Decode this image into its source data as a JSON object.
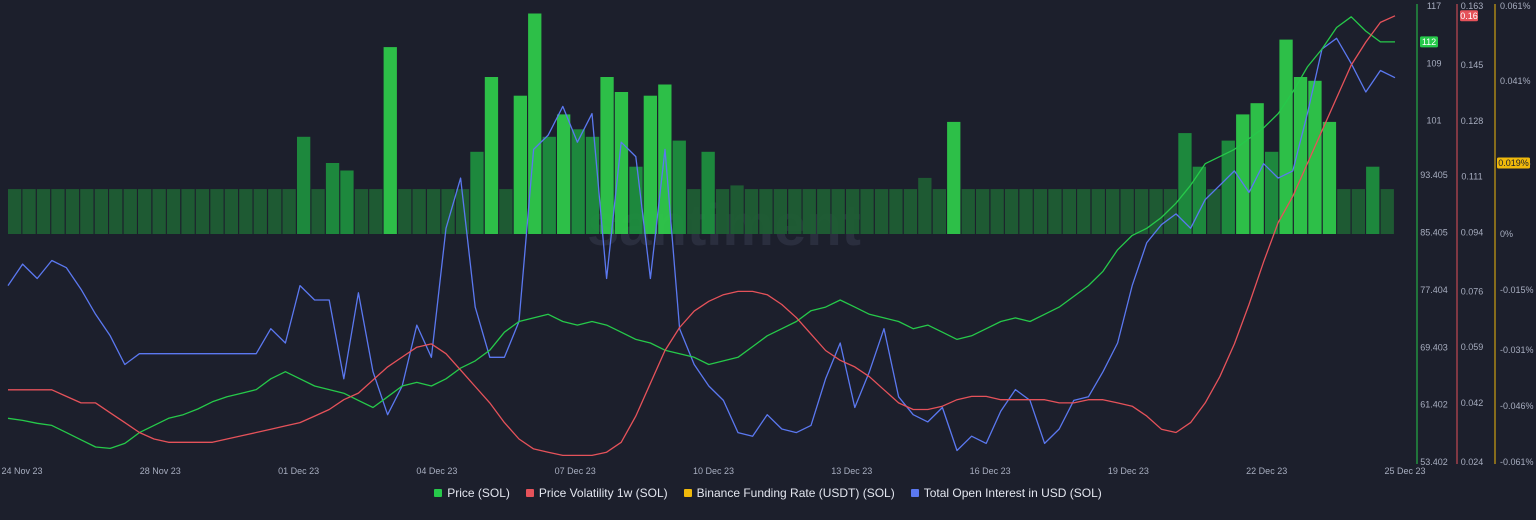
{
  "chart_data": {
    "type": "line",
    "x_ticks": [
      "24 Nov 23",
      "28 Nov 23",
      "01 Dec 23",
      "04 Dec 23",
      "07 Dec 23",
      "10 Dec 23",
      "13 Dec 23",
      "16 Dec 23",
      "19 Dec 23",
      "22 Dec 23",
      "25 Dec 23"
    ],
    "axes": {
      "price": {
        "ticks": [
          "117",
          "109",
          "101",
          "93.405",
          "85.405",
          "77.404",
          "69.403",
          "61.402",
          "53.402"
        ],
        "color": "#26c94a",
        "last_value": "112"
      },
      "volatility": {
        "ticks": [
          "0.163",
          "0.145",
          "0.128",
          "0.111",
          "0.094",
          "0.076",
          "0.059",
          "0.042",
          "0.024"
        ],
        "color": "#e5525a",
        "last_value": "0.16"
      },
      "funding": {
        "ticks": [
          "0.061%",
          "0.041%",
          "0.019%",
          "0%",
          "-0.015%",
          "-0.031%",
          "-0.046%",
          "-0.061%"
        ],
        "color": "#f0b90b",
        "last_value": "0.019%"
      }
    },
    "series": [
      {
        "name": "Price (SOL)",
        "color": "#26c94a",
        "values": [
          59.5,
          59.2,
          58.8,
          58.5,
          57.5,
          56.5,
          55.5,
          55.3,
          56.0,
          57.5,
          58.5,
          59.5,
          60.0,
          60.8,
          61.8,
          62.5,
          63.0,
          63.5,
          65.0,
          66.0,
          65.0,
          64.0,
          63.5,
          63.0,
          62.0,
          61.0,
          62.5,
          64.0,
          64.5,
          64.0,
          65.0,
          66.5,
          67.5,
          69.0,
          71.5,
          73.0,
          73.5,
          74.0,
          73.0,
          72.5,
          73.0,
          72.5,
          71.5,
          70.5,
          70.0,
          69.0,
          68.5,
          68.0,
          67.0,
          67.5,
          68.0,
          69.5,
          71.0,
          72.0,
          73.0,
          74.5,
          75.0,
          76.0,
          75.0,
          74.0,
          73.5,
          73.0,
          72.0,
          72.5,
          71.5,
          70.5,
          71.0,
          72.0,
          73.0,
          73.5,
          73.0,
          74.0,
          75.0,
          76.5,
          78.0,
          80.0,
          83.0,
          85.0,
          86.0,
          87.5,
          89.5,
          92.0,
          95.0,
          96.0,
          97.0,
          98.5,
          100.0,
          102.0,
          105.0,
          108.5,
          111.0,
          114.0,
          115.5,
          113.5,
          112.0,
          112.0
        ]
      },
      {
        "name": "Price Volatility 1w (SOL)",
        "color": "#e5525a",
        "values": [
          0.046,
          0.046,
          0.046,
          0.046,
          0.044,
          0.042,
          0.042,
          0.039,
          0.036,
          0.033,
          0.031,
          0.03,
          0.03,
          0.03,
          0.03,
          0.031,
          0.032,
          0.033,
          0.034,
          0.035,
          0.036,
          0.038,
          0.04,
          0.043,
          0.045,
          0.049,
          0.053,
          0.056,
          0.059,
          0.06,
          0.057,
          0.052,
          0.047,
          0.042,
          0.036,
          0.031,
          0.028,
          0.027,
          0.026,
          0.026,
          0.026,
          0.027,
          0.03,
          0.038,
          0.048,
          0.058,
          0.065,
          0.07,
          0.073,
          0.075,
          0.076,
          0.076,
          0.075,
          0.072,
          0.068,
          0.063,
          0.058,
          0.055,
          0.053,
          0.05,
          0.046,
          0.042,
          0.04,
          0.04,
          0.041,
          0.043,
          0.044,
          0.044,
          0.043,
          0.043,
          0.043,
          0.043,
          0.042,
          0.042,
          0.043,
          0.043,
          0.042,
          0.041,
          0.038,
          0.034,
          0.033,
          0.036,
          0.042,
          0.05,
          0.06,
          0.072,
          0.085,
          0.097,
          0.105,
          0.115,
          0.125,
          0.135,
          0.145,
          0.152,
          0.158,
          0.16
        ]
      },
      {
        "name": "Binance Funding Rate (USDT) (SOL)",
        "color": "#f0b90b",
        "values": [
          0.012,
          0.012,
          0.012,
          0.012,
          0.012,
          0.012,
          0.012,
          0.012,
          0.012,
          0.012,
          0.012,
          0.012,
          0.012,
          0.012,
          0.012,
          0.012,
          0.012,
          0.012,
          0.012,
          0.012,
          0.026,
          0.012,
          0.019,
          0.017,
          0.012,
          0.012,
          0.05,
          0.012,
          0.012,
          0.012,
          0.012,
          0.012,
          0.022,
          0.042,
          0.012,
          0.037,
          0.059,
          0.026,
          0.032,
          0.028,
          0.026,
          0.042,
          0.038,
          0.018,
          0.037,
          0.04,
          0.025,
          0.012,
          0.022,
          0.012,
          0.013,
          0.012,
          0.012,
          0.012,
          0.012,
          0.012,
          0.012,
          0.012,
          0.012,
          0.012,
          0.012,
          0.012,
          0.012,
          0.015,
          0.012,
          0.03,
          0.012,
          0.012,
          0.012,
          0.012,
          0.012,
          0.012,
          0.012,
          0.012,
          0.012,
          0.012,
          0.012,
          0.012,
          0.012,
          0.012,
          0.012,
          0.027,
          0.018,
          0.012,
          0.025,
          0.032,
          0.035,
          0.022,
          0.052,
          0.042,
          0.041,
          0.03,
          0.012,
          0.012,
          0.018,
          0.012
        ]
      },
      {
        "name": "Total Open Interest in USD (SOL)",
        "color": "#5b78f0",
        "values": [
          78.0,
          81.0,
          79.0,
          81.5,
          80.5,
          77.5,
          74.0,
          71.0,
          67.0,
          68.5,
          68.5,
          68.5,
          68.5,
          68.5,
          68.5,
          68.5,
          68.5,
          68.5,
          72.0,
          70.0,
          78.0,
          76.0,
          76.0,
          65.0,
          77.0,
          66.0,
          60.0,
          64.0,
          72.5,
          68.0,
          86.0,
          93.0,
          75.0,
          68.0,
          68.0,
          73.0,
          97.0,
          99.0,
          103.0,
          98.0,
          102.0,
          79.0,
          98.0,
          96.0,
          79.0,
          97.0,
          72.0,
          67.0,
          64.0,
          62.0,
          57.5,
          57.0,
          60.0,
          58.0,
          57.5,
          58.5,
          65.0,
          70.0,
          61.0,
          66.0,
          72.0,
          62.5,
          60.0,
          59.0,
          61.0,
          55.0,
          57.0,
          56.0,
          60.5,
          63.5,
          62.0,
          56.0,
          58.0,
          62.0,
          62.5,
          66.0,
          70.0,
          78.0,
          84.0,
          86.5,
          88.0,
          86.0,
          90.0,
          92.0,
          94.0,
          91.0,
          95.0,
          93.0,
          94.0,
          102.0,
          111.0,
          112.5,
          109.0,
          105.0,
          108.0,
          107.0
        ]
      }
    ],
    "legend_position": "bottom-center",
    "grid": false
  },
  "legend": [
    "Price (SOL)",
    "Price Volatility 1w (SOL)",
    "Binance Funding Rate (USDT) (SOL)",
    "Total Open Interest in USD (SOL)"
  ],
  "watermark": "santiment"
}
